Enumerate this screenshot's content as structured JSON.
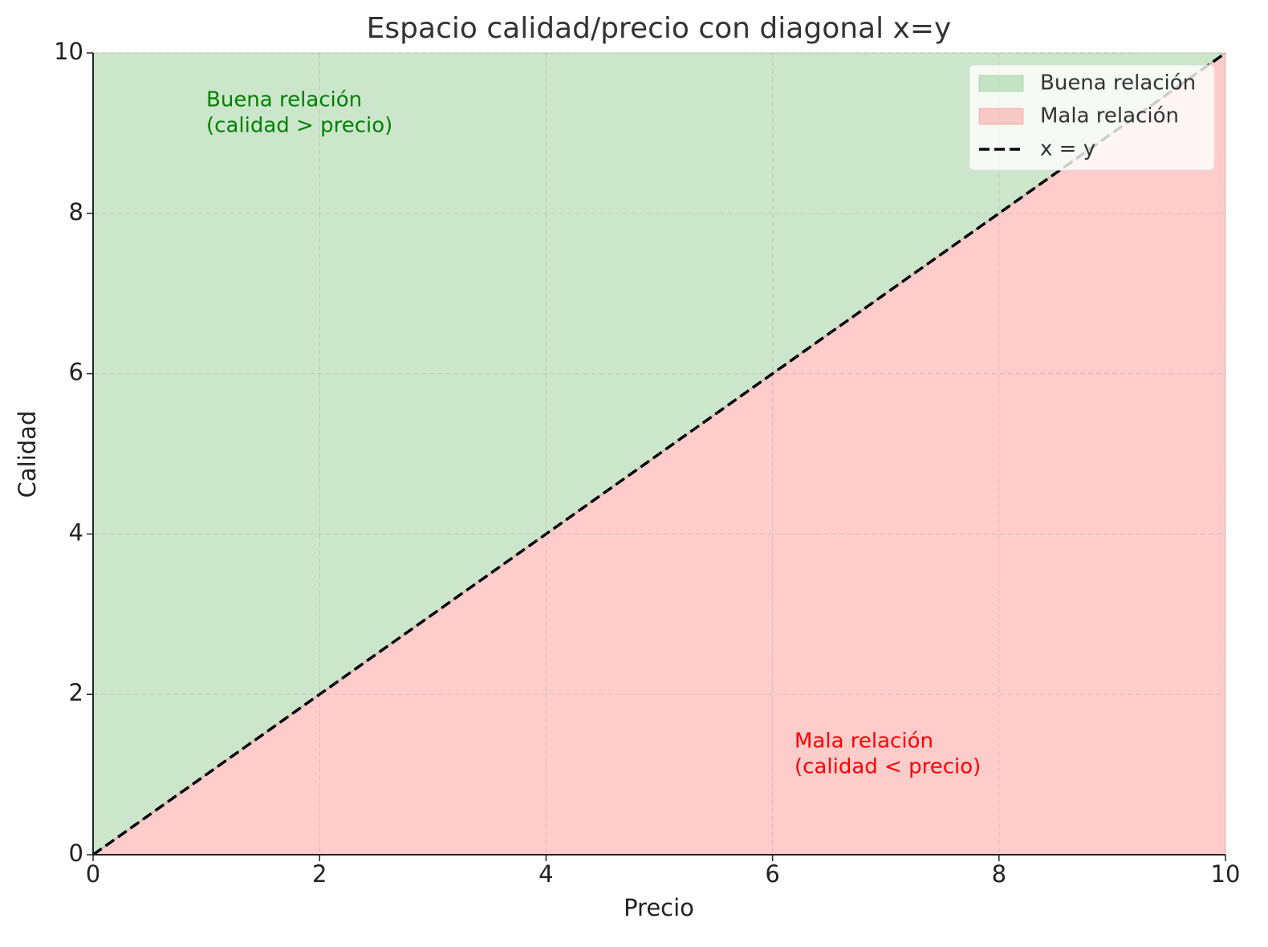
{
  "chart_data": {
    "type": "area",
    "title": "Espacio calidad/precio con diagonal x=y",
    "xlabel": "Precio",
    "ylabel": "Calidad",
    "x": [
      0,
      10
    ],
    "series": [
      {
        "name": "Buena relación",
        "color": "green",
        "alpha": 0.2,
        "kind": "fill",
        "lower": [
          0,
          10
        ],
        "upper": [
          10,
          10
        ]
      },
      {
        "name": "Mala relación",
        "color": "red",
        "alpha": 0.2,
        "kind": "fill",
        "lower": [
          0,
          0
        ],
        "upper": [
          0,
          10
        ]
      },
      {
        "name": "x = y",
        "color": "black",
        "kind": "line",
        "dashed": true,
        "values": [
          0,
          10
        ]
      }
    ],
    "annotations": [
      {
        "lines": [
          "Buena relación",
          "(calidad > precio)"
        ],
        "color": "green"
      },
      {
        "lines": [
          "Mala relación",
          "(calidad < precio)"
        ],
        "color": "red"
      }
    ],
    "xlim": [
      0,
      10
    ],
    "ylim": [
      0,
      10
    ],
    "xticks": [
      0,
      2,
      4,
      6,
      8,
      10
    ],
    "yticks": [
      0,
      2,
      4,
      6,
      8,
      10
    ],
    "grid": true,
    "legend": "upper right"
  }
}
